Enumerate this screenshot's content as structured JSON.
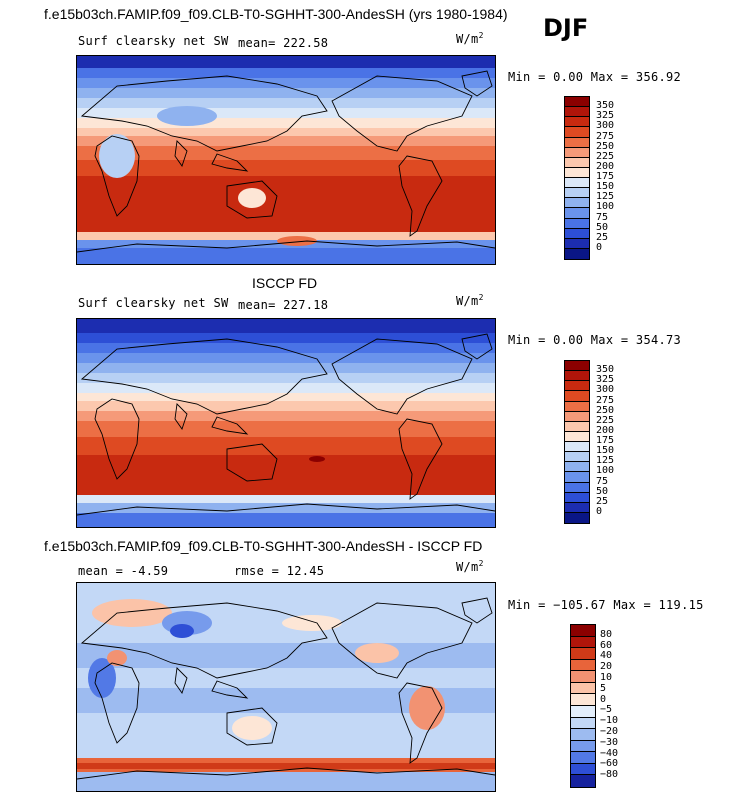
{
  "header": {
    "title": "f.e15b03ch.FAMIP.f09_f09.CLB-T0-SGHHT-300-AndesSH (yrs 1980-1984)",
    "season": "DJF"
  },
  "panels": [
    {
      "variable": "Surf clearsky net SW",
      "stat": "mean= 222.58",
      "units": "W/m",
      "units_sup": "2",
      "minmax": "Min =    0.00 Max = 356.92",
      "colorbar_labels": [
        "350",
        "325",
        "300",
        "275",
        "250",
        "225",
        "200",
        "175",
        "150",
        "125",
        "100",
        "75",
        "50",
        "25",
        "0"
      ]
    },
    {
      "section_title": "ISCCP FD",
      "variable": "Surf clearsky net SW",
      "stat": "mean= 227.18",
      "units": "W/m",
      "units_sup": "2",
      "minmax": "Min =    0.00 Max = 354.73",
      "colorbar_labels": [
        "350",
        "325",
        "300",
        "275",
        "250",
        "225",
        "200",
        "175",
        "150",
        "125",
        "100",
        "75",
        "50",
        "25",
        "0"
      ]
    },
    {
      "section_title": "f.e15b03ch.FAMIP.f09_f09.CLB-T0-SGHHT-300-AndesSH - ISCCP FD",
      "stat": "mean =   -4.59",
      "stat2": "rmse =   12.45",
      "units": "W/m",
      "units_sup": "2",
      "minmax": "Min = −105.67 Max = 119.15",
      "colorbar_labels": [
        "80",
        "60",
        "40",
        "20",
        "10",
        "5",
        "0",
        "−5",
        "−10",
        "−20",
        "−30",
        "−40",
        "−60",
        "−80"
      ]
    }
  ],
  "colors": {
    "seq": [
      "#8b0000",
      "#b0150a",
      "#c82a10",
      "#de4a22",
      "#ec6f45",
      "#f59a79",
      "#fcc8ae",
      "#fde6d6",
      "#dbe8f8",
      "#b7d0f4",
      "#8fb2ef",
      "#6a93ec",
      "#4a73e6",
      "#2d4fd6",
      "#1c2db0",
      "#0a1686"
    ],
    "div": [
      "#8b0000",
      "#b0150a",
      "#d03a18",
      "#e8643a",
      "#f29272",
      "#fbc3a8",
      "#fde6d6",
      "#e3eefb",
      "#c3d8f6",
      "#9dbbf0",
      "#779bec",
      "#5279e6",
      "#2e4fd6",
      "#16229e"
    ]
  }
}
